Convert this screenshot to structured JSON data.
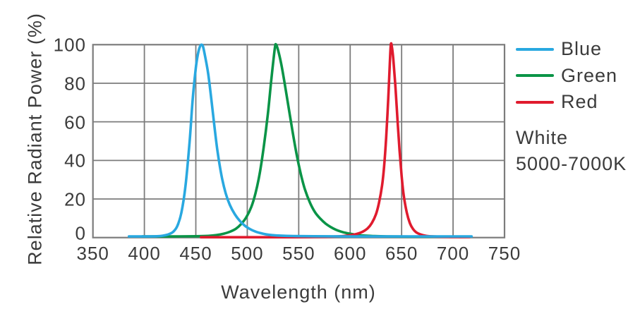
{
  "chart_data": {
    "type": "line",
    "title": "",
    "xlabel": "Wavelength (nm)",
    "ylabel": "Relative Radiant Power (%)",
    "xlim": [
      350,
      750
    ],
    "ylim": [
      0,
      100
    ],
    "x_ticks": [
      350,
      400,
      450,
      500,
      550,
      600,
      650,
      700,
      750
    ],
    "y_ticks": [
      0,
      20,
      40,
      60,
      80,
      100
    ],
    "grid": true,
    "legend_position": "right",
    "grid_color": "#7c7c7c",
    "text_color": "#3b3b3b",
    "annotations": [
      "White",
      "5000-7000K"
    ],
    "series": [
      {
        "name": "Blue",
        "color": "#29A8E0",
        "peak_nm": 455,
        "peak_percent": 100,
        "points": [
          [
            385,
            0.6
          ],
          [
            402,
            0.6
          ],
          [
            412,
            0.7
          ],
          [
            418,
            1.0
          ],
          [
            424,
            1.8
          ],
          [
            428,
            3.0
          ],
          [
            432,
            6.0
          ],
          [
            436,
            13
          ],
          [
            440,
            27
          ],
          [
            444,
            50
          ],
          [
            447,
            72
          ],
          [
            450,
            88
          ],
          [
            452,
            95
          ],
          [
            454,
            99
          ],
          [
            455.5,
            100
          ],
          [
            457,
            99
          ],
          [
            459,
            94
          ],
          [
            462,
            85
          ],
          [
            465,
            72
          ],
          [
            468,
            58
          ],
          [
            471,
            45
          ],
          [
            475,
            32
          ],
          [
            479,
            23
          ],
          [
            483,
            17
          ],
          [
            488,
            12
          ],
          [
            493,
            8.5
          ],
          [
            498,
            6.0
          ],
          [
            503,
            4.3
          ],
          [
            508,
            3.1
          ],
          [
            513,
            2.3
          ],
          [
            518,
            1.7
          ],
          [
            524,
            1.3
          ],
          [
            532,
            1.0
          ],
          [
            545,
            0.8
          ],
          [
            565,
            0.7
          ],
          [
            600,
            0.6
          ],
          [
            660,
            0.6
          ],
          [
            718,
            0.6
          ]
        ]
      },
      {
        "name": "Green",
        "color": "#0A9447",
        "peak_nm": 527,
        "peak_percent": 100,
        "points": [
          [
            398,
            0.6
          ],
          [
            430,
            0.6
          ],
          [
            450,
            0.7
          ],
          [
            462,
            0.9
          ],
          [
            470,
            1.3
          ],
          [
            477,
            2.0
          ],
          [
            483,
            3.0
          ],
          [
            489,
            4.6
          ],
          [
            494,
            7.0
          ],
          [
            499,
            10.5
          ],
          [
            504,
            16
          ],
          [
            508,
            23
          ],
          [
            512,
            33
          ],
          [
            516,
            47
          ],
          [
            520,
            64
          ],
          [
            523,
            80
          ],
          [
            525,
            90
          ],
          [
            527,
            99
          ],
          [
            528,
            100
          ],
          [
            530,
            97
          ],
          [
            533,
            90
          ],
          [
            536,
            81
          ],
          [
            540,
            68
          ],
          [
            544,
            55
          ],
          [
            548,
            43
          ],
          [
            552,
            33
          ],
          [
            556,
            25
          ],
          [
            561,
            18
          ],
          [
            566,
            13
          ],
          [
            571,
            9.8
          ],
          [
            576,
            7.3
          ],
          [
            581,
            5.5
          ],
          [
            586,
            4.1
          ],
          [
            591,
            3.1
          ],
          [
            596,
            2.4
          ],
          [
            602,
            1.8
          ],
          [
            608,
            1.3
          ],
          [
            614,
            1.0
          ],
          [
            622,
            0.8
          ],
          [
            635,
            0.6
          ],
          [
            660,
            0.5
          ],
          [
            690,
            0.5
          ],
          [
            712,
            0.5
          ]
        ]
      },
      {
        "name": "Red",
        "color": "#E01B2E",
        "peak_nm": 639,
        "peak_percent": 100,
        "points": [
          [
            455,
            0.2
          ],
          [
            500,
            0.2
          ],
          [
            545,
            0.2
          ],
          [
            565,
            0.3
          ],
          [
            578,
            0.4
          ],
          [
            588,
            0.6
          ],
          [
            595,
            0.9
          ],
          [
            601,
            1.3
          ],
          [
            607,
            2.0
          ],
          [
            612,
            3.0
          ],
          [
            617,
            4.8
          ],
          [
            621,
            7.5
          ],
          [
            625,
            12
          ],
          [
            628,
            18
          ],
          [
            631,
            27
          ],
          [
            633,
            37
          ],
          [
            635,
            52
          ],
          [
            637,
            72
          ],
          [
            638.5,
            90
          ],
          [
            639.5,
            100
          ],
          [
            640.5,
            99
          ],
          [
            642,
            92
          ],
          [
            644,
            78
          ],
          [
            646,
            61
          ],
          [
            648,
            45
          ],
          [
            650,
            32
          ],
          [
            652,
            22
          ],
          [
            655,
            13
          ],
          [
            658,
            7.5
          ],
          [
            661,
            4.5
          ],
          [
            664,
            2.8
          ],
          [
            668,
            1.7
          ],
          [
            673,
            1.0
          ],
          [
            680,
            0.6
          ],
          [
            690,
            0.4
          ],
          [
            705,
            0.3
          ],
          [
            716,
            0.3
          ]
        ]
      }
    ]
  }
}
